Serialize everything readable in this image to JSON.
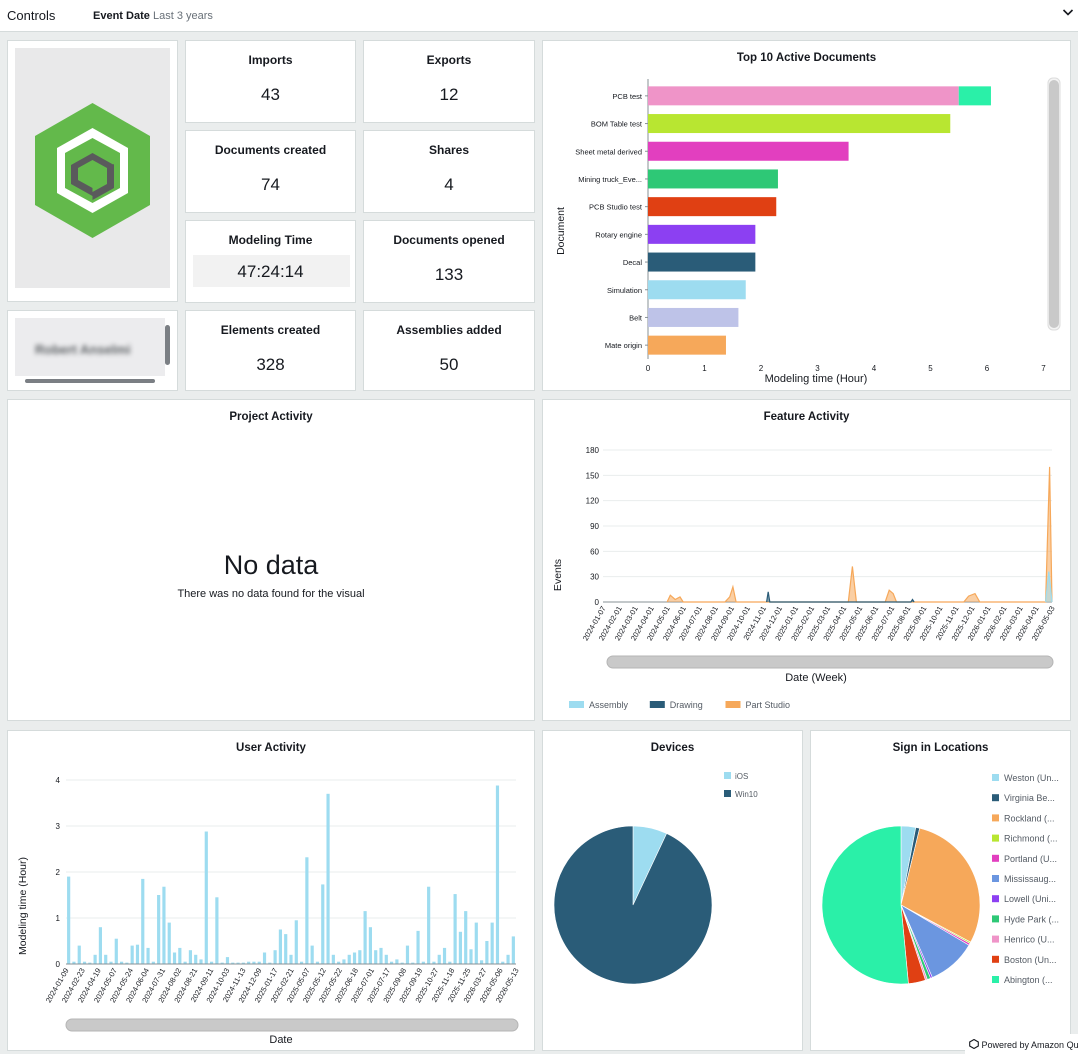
{
  "controls": {
    "title": "Controls",
    "filter_label": "Event Date",
    "filter_value": "Last 3 years",
    "expand_icon": "chevron-down-icon"
  },
  "logo": {
    "icon": "hexagon-cube-logo",
    "color": "#63b94b"
  },
  "user": {
    "name": "Robert Anselmi"
  },
  "kpis": [
    {
      "label": "Imports",
      "value": "43"
    },
    {
      "label": "Exports",
      "value": "12"
    },
    {
      "label": "Documents created",
      "value": "74"
    },
    {
      "label": "Shares",
      "value": "4"
    },
    {
      "label": "Modeling Time",
      "value": "47:24:14"
    },
    {
      "label": "Documents opened",
      "value": "133"
    },
    {
      "label": "Elements created",
      "value": "328"
    },
    {
      "label": "Assemblies added",
      "value": "50"
    }
  ],
  "top_docs": {
    "title": "Top 10 Active Documents",
    "chart_data": {
      "type": "bar",
      "orientation": "horizontal",
      "stacked": true,
      "categories": [
        "PCB test",
        "BOM Table test",
        "Sheet metal derived",
        "Mining truck_Eve...",
        "PCB Studio test",
        "Rotary engine",
        "Decal",
        "Simulation",
        "Belt",
        "Mate origin"
      ],
      "series": [
        {
          "values": [
            5.5,
            5.35,
            3.55,
            2.3,
            2.27,
            1.9,
            1.9,
            1.73,
            1.6,
            1.38
          ],
          "colors": [
            "#ef94c8",
            "#b8e631",
            "#e23fbf",
            "#2ec876",
            "#e04013",
            "#8c40f2",
            "#2a5c78",
            "#9ddcf0",
            "#bec3e8",
            "#f6a85a"
          ]
        },
        {
          "values": [
            0.57,
            0,
            0,
            0,
            0,
            0,
            0,
            0,
            0,
            0
          ],
          "colors": [
            "#2af0a8"
          ]
        }
      ],
      "xlabel": "Modeling time (Hour)",
      "ylabel": "Document",
      "xticks": [
        "0",
        "1",
        "2",
        "3",
        "4",
        "5",
        "6",
        "7"
      ],
      "xlim": [
        0,
        7
      ]
    }
  },
  "project": {
    "title": "Project Activity",
    "nodata": "No data",
    "nodata_msg": "There was no data found for the visual"
  },
  "feature": {
    "title": "Feature Activity",
    "chart_data": {
      "type": "area",
      "xlabel": "Date (Week)",
      "ylabel": "Events",
      "ylim": [
        0,
        180
      ],
      "yticks": [
        "0",
        "30",
        "60",
        "90",
        "120",
        "150",
        "180"
      ],
      "xticks": [
        "2024-01-07",
        "2024-02-01",
        "2024-03-01",
        "2024-04-01",
        "2024-05-01",
        "2024-06-01",
        "2024-07-01",
        "2024-08-01",
        "2024-09-01",
        "2024-10-01",
        "2024-11-01",
        "2024-12-01",
        "2025-01-01",
        "2025-02-01",
        "2025-03-01",
        "2025-04-01",
        "2025-05-01",
        "2025-06-01",
        "2025-07-01",
        "2025-08-01",
        "2025-09-01",
        "2025-10-01",
        "2025-11-01",
        "2025-12-01",
        "2026-01-01",
        "2026-02-01",
        "2026-03-01",
        "2026-04-01",
        "2026-05-03"
      ],
      "legend": [
        {
          "name": "Assembly",
          "color": "#9ddcf0"
        },
        {
          "name": "Drawing",
          "color": "#2a5c78"
        },
        {
          "name": "Part Studio",
          "color": "#f6a85a"
        }
      ],
      "part_studio": [
        [
          4.0,
          0
        ],
        [
          4.2,
          8
        ],
        [
          4.5,
          3
        ],
        [
          4.8,
          6
        ],
        [
          5.0,
          0
        ],
        [
          7.6,
          0
        ],
        [
          7.9,
          6
        ],
        [
          8.1,
          18
        ],
        [
          8.3,
          0
        ],
        [
          15.3,
          0
        ],
        [
          15.55,
          42
        ],
        [
          15.8,
          0
        ],
        [
          17.6,
          0
        ],
        [
          17.85,
          14
        ],
        [
          18.1,
          10
        ],
        [
          18.3,
          0
        ],
        [
          22.5,
          0
        ],
        [
          22.8,
          7
        ],
        [
          23.2,
          10
        ],
        [
          23.5,
          0
        ],
        [
          27.6,
          0
        ],
        [
          27.85,
          160
        ],
        [
          28.0,
          0
        ]
      ],
      "assembly": [
        [
          27.6,
          0
        ],
        [
          27.8,
          36
        ],
        [
          28.0,
          0
        ]
      ],
      "drawing": [
        [
          10.2,
          0
        ],
        [
          10.3,
          12
        ],
        [
          10.4,
          0
        ],
        [
          19.2,
          0
        ],
        [
          19.3,
          3
        ],
        [
          19.4,
          0
        ]
      ]
    }
  },
  "user_activity": {
    "title": "User Activity",
    "chart_data": {
      "type": "bar",
      "xlabel": "Date",
      "ylabel": "Modeling time (Hour)",
      "ylim": [
        0,
        4
      ],
      "yticks": [
        "0",
        "1",
        "2",
        "3",
        "4"
      ],
      "xticks": [
        "2024-01-09",
        "2024-02-23",
        "2024-04-19",
        "2024-05-07",
        "2024-05-24",
        "2024-06-04",
        "2024-07-31",
        "2024-08-02",
        "2024-08-21",
        "2024-09-11",
        "2024-10-03",
        "2024-11-13",
        "2024-12-09",
        "2025-01-17",
        "2025-02-21",
        "2025-05-07",
        "2025-05-12",
        "2025-05-22",
        "2025-06-18",
        "2025-07-01",
        "2025-07-17",
        "2025-09-08",
        "2025-09-19",
        "2025-10-27",
        "2025-11-18",
        "2025-11-25",
        "2026-03-27",
        "2026-05-06",
        "2026-05-13"
      ],
      "values": [
        1.9,
        0.05,
        0.4,
        0.05,
        0.03,
        0.2,
        0.8,
        0.2,
        0.05,
        0.55,
        0.05,
        0.03,
        0.4,
        0.42,
        1.85,
        0.35,
        0.05,
        1.5,
        1.68,
        0.9,
        0.25,
        0.35,
        0.05,
        0.3,
        0.2,
        0.1,
        2.88,
        0.05,
        1.45,
        0.03,
        0.15,
        0.03,
        0.03,
        0.03,
        0.05,
        0.05,
        0.05,
        0.25,
        0.03,
        0.3,
        0.75,
        0.65,
        0.2,
        0.95,
        0.05,
        2.32,
        0.4,
        0.05,
        1.73,
        3.7,
        0.2,
        0.05,
        0.1,
        0.2,
        0.25,
        0.3,
        1.15,
        0.8,
        0.3,
        0.35,
        0.2,
        0.05,
        0.1,
        0.03,
        0.4,
        0.03,
        0.72,
        0.05,
        1.68,
        0.05,
        0.2,
        0.35,
        0.05,
        1.52,
        0.7,
        1.15,
        0.32,
        0.9,
        0.08,
        0.5,
        0.9,
        3.88,
        0.05,
        0.2,
        0.6
      ]
    }
  },
  "devices": {
    "title": "Devices",
    "chart_data": {
      "type": "pie",
      "labels": [
        "iOS",
        "Win10"
      ],
      "values": [
        7,
        93
      ],
      "colors": [
        "#9ddcf0",
        "#2a5c78"
      ]
    }
  },
  "signin": {
    "title": "Sign in Locations",
    "chart_data": {
      "type": "pie",
      "labels": [
        "Weston (Un...",
        "Virginia Be...",
        "Rockland (...",
        "Richmond (...",
        "Portland (U...",
        "Mississaug...",
        "Lowell (Uni...",
        "Hyde Park (...",
        "Henrico (U...",
        "Boston (Un...",
        "Abington (..."
      ],
      "values": [
        3,
        0.8,
        29,
        0.3,
        0.4,
        10,
        0.4,
        0.7,
        0.4,
        3.5,
        51.5
      ],
      "colors": [
        "#9ddcf0",
        "#2a5c78",
        "#f6a85a",
        "#b8e631",
        "#e23fbf",
        "#6b96e0",
        "#8c40f2",
        "#2ec876",
        "#ef94c8",
        "#e04013",
        "#2af0a8"
      ]
    }
  },
  "footer": {
    "powered": "Powered by Amazon Quick"
  }
}
